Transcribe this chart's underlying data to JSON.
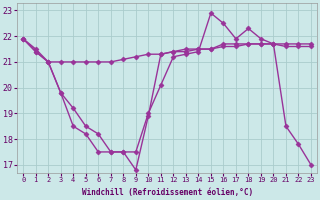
{
  "x": [
    0,
    1,
    2,
    3,
    4,
    5,
    6,
    7,
    8,
    9,
    10,
    11,
    12,
    13,
    14,
    15,
    16,
    17,
    18,
    19,
    20,
    21,
    22,
    23
  ],
  "line1": [
    21.9,
    21.5,
    21.0,
    19.8,
    19.2,
    18.5,
    18.2,
    17.5,
    17.5,
    17.5,
    19.0,
    20.1,
    21.2,
    21.3,
    21.4,
    22.9,
    22.5,
    21.9,
    22.3,
    21.9,
    21.7,
    21.6,
    21.6,
    21.6
  ],
  "line2": [
    21.9,
    21.4,
    21.0,
    21.0,
    21.0,
    21.0,
    21.0,
    21.0,
    21.1,
    21.2,
    21.3,
    21.3,
    21.4,
    21.4,
    21.5,
    21.5,
    21.6,
    21.6,
    21.7,
    21.7,
    21.7,
    21.7,
    21.7,
    21.7
  ],
  "line3": [
    21.9,
    21.4,
    21.0,
    19.8,
    18.5,
    18.2,
    17.5,
    17.5,
    17.5,
    16.8,
    18.9,
    21.3,
    21.4,
    21.5,
    21.5,
    21.5,
    21.7,
    21.7,
    21.7,
    21.7,
    21.7,
    18.5,
    17.8,
    17.0
  ],
  "color": "#993399",
  "bg_color": "#cce8e8",
  "grid_color": "#aacccc",
  "xlabel": "Windchill (Refroidissement éolien,°C)",
  "xlim_min": -0.5,
  "xlim_max": 23.5,
  "ylim_min": 16.7,
  "ylim_max": 23.3,
  "yticks": [
    17,
    18,
    19,
    20,
    21,
    22,
    23
  ],
  "xticks": [
    0,
    1,
    2,
    3,
    4,
    5,
    6,
    7,
    8,
    9,
    10,
    11,
    12,
    13,
    14,
    15,
    16,
    17,
    18,
    19,
    20,
    21,
    22,
    23
  ],
  "markersize": 2.5,
  "linewidth": 1.0
}
